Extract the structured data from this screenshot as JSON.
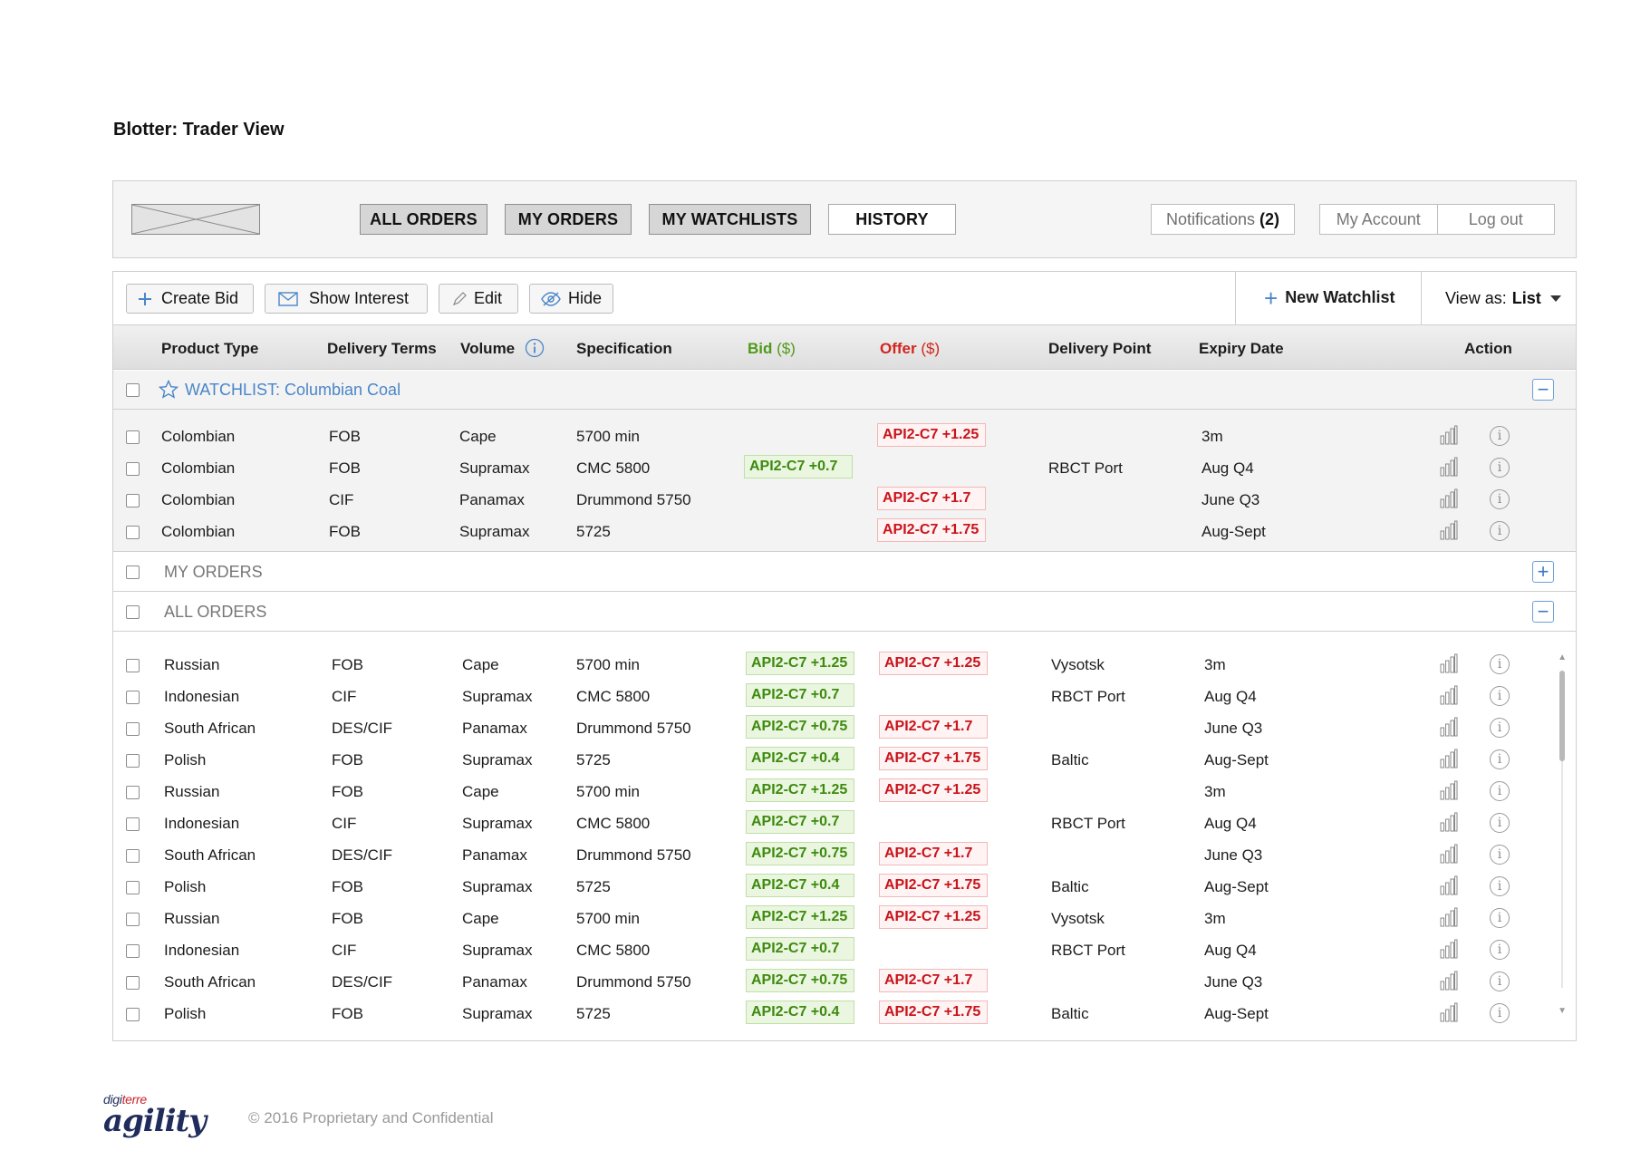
{
  "page": {
    "title": "Blotter: Trader View"
  },
  "nav": {
    "tabs": [
      {
        "label": "ALL ORDERS"
      },
      {
        "label": "MY ORDERS"
      },
      {
        "label": "MY WATCHLISTS"
      },
      {
        "label": "HISTORY"
      }
    ],
    "notifications_label": "Notifications",
    "notifications_count": "(2)",
    "my_account": "My Account",
    "log_out": "Log out"
  },
  "toolbar": {
    "create_bid": "Create Bid",
    "show_interest": "Show Interest",
    "edit": "Edit",
    "hide": "Hide",
    "new_watchlist": "New Watchlist",
    "view_as_label": "View as:",
    "view_as_value": "List"
  },
  "columns": {
    "product_type": "Product Type",
    "delivery_terms": "Delivery Terms",
    "volume": "Volume",
    "specification": "Specification",
    "bid": "Bid",
    "bid_unit": "($)",
    "offer": "Offer",
    "offer_unit": "($)",
    "delivery_point": "Delivery Point",
    "expiry_date": "Expiry Date",
    "action": "Action"
  },
  "sections": {
    "watchlist": "WATCHLIST: Columbian Coal",
    "my_orders": "MY ORDERS",
    "all_orders": "ALL ORDERS"
  },
  "watchlist_rows": [
    {
      "product": "Colombian",
      "terms": "FOB",
      "volume": "Cape",
      "spec": "5700 min",
      "bid": "",
      "offer": "API2-C7 +1.25",
      "point": "",
      "expiry": "3m"
    },
    {
      "product": "Colombian",
      "terms": "FOB",
      "volume": "Supramax",
      "spec": "CMC 5800",
      "bid": "API2-C7 +0.7",
      "offer": "",
      "point": "RBCT Port",
      "expiry": "Aug Q4"
    },
    {
      "product": "Colombian",
      "terms": "CIF",
      "volume": "Panamax",
      "spec": "Drummond 5750",
      "bid": "",
      "offer": "API2-C7 +1.7",
      "point": "",
      "expiry": "June Q3"
    },
    {
      "product": "Colombian",
      "terms": "FOB",
      "volume": "Supramax",
      "spec": "5725",
      "bid": "",
      "offer": "API2-C7 +1.75",
      "point": "",
      "expiry": "Aug-Sept"
    }
  ],
  "all_order_rows": [
    {
      "product": "Russian",
      "terms": "FOB",
      "volume": "Cape",
      "spec": "5700 min",
      "bid": "API2-C7 +1.25",
      "offer": "API2-C7 +1.25",
      "point": "Vysotsk",
      "expiry": "3m"
    },
    {
      "product": "Indonesian",
      "terms": "CIF",
      "volume": "Supramax",
      "spec": "CMC 5800",
      "bid": "API2-C7 +0.7",
      "offer": "",
      "point": "RBCT Port",
      "expiry": "Aug Q4"
    },
    {
      "product": "South African",
      "terms": "DES/CIF",
      "volume": "Panamax",
      "spec": "Drummond 5750",
      "bid": "API2-C7 +0.75",
      "offer": "API2-C7 +1.7",
      "point": "",
      "expiry": "June Q3"
    },
    {
      "product": "Polish",
      "terms": "FOB",
      "volume": "Supramax",
      "spec": "5725",
      "bid": "API2-C7 +0.4",
      "offer": "API2-C7 +1.75",
      "point": "Baltic",
      "expiry": "Aug-Sept"
    },
    {
      "product": "Russian",
      "terms": "FOB",
      "volume": "Cape",
      "spec": "5700 min",
      "bid": "API2-C7 +1.25",
      "offer": "API2-C7 +1.25",
      "point": "",
      "expiry": "3m"
    },
    {
      "product": "Indonesian",
      "terms": "CIF",
      "volume": "Supramax",
      "spec": "CMC 5800",
      "bid": "API2-C7 +0.7",
      "offer": "",
      "point": "RBCT Port",
      "expiry": "Aug Q4"
    },
    {
      "product": "South African",
      "terms": "DES/CIF",
      "volume": "Panamax",
      "spec": "Drummond 5750",
      "bid": "API2-C7 +0.75",
      "offer": "API2-C7 +1.7",
      "point": "",
      "expiry": "June Q3"
    },
    {
      "product": "Polish",
      "terms": "FOB",
      "volume": "Supramax",
      "spec": "5725",
      "bid": "API2-C7 +0.4",
      "offer": "API2-C7 +1.75",
      "point": "Baltic",
      "expiry": "Aug-Sept"
    },
    {
      "product": "Russian",
      "terms": "FOB",
      "volume": "Cape",
      "spec": "5700 min",
      "bid": "API2-C7 +1.25",
      "offer": "API2-C7 +1.25",
      "point": "Vysotsk",
      "expiry": "3m"
    },
    {
      "product": "Indonesian",
      "terms": "CIF",
      "volume": "Supramax",
      "spec": "CMC 5800",
      "bid": "API2-C7 +0.7",
      "offer": "",
      "point": "RBCT Port",
      "expiry": "Aug Q4"
    },
    {
      "product": "South African",
      "terms": "DES/CIF",
      "volume": "Panamax",
      "spec": "Drummond 5750",
      "bid": "API2-C7 +0.75",
      "offer": "API2-C7 +1.7",
      "point": "",
      "expiry": "June Q3"
    },
    {
      "product": "Polish",
      "terms": "FOB",
      "volume": "Supramax",
      "spec": "5725",
      "bid": "API2-C7 +0.4",
      "offer": "API2-C7 +1.75",
      "point": "Baltic",
      "expiry": "Aug-Sept"
    }
  ],
  "icons": {
    "chart": "bar-chart-icon",
    "info": "info-icon",
    "star": "star-icon",
    "plus": "plus-icon",
    "envelope": "envelope-icon",
    "pencil": "pencil-icon",
    "eye": "eye-icon"
  },
  "colors": {
    "bid": "#3e8a10",
    "offer": "#c8141b",
    "accent": "#4a86c8"
  },
  "footer": {
    "brand_top_a": "digi",
    "brand_top_b": "terre",
    "brand_main": "agility",
    "copyright": "© 2016 Proprietary and Confidential"
  }
}
